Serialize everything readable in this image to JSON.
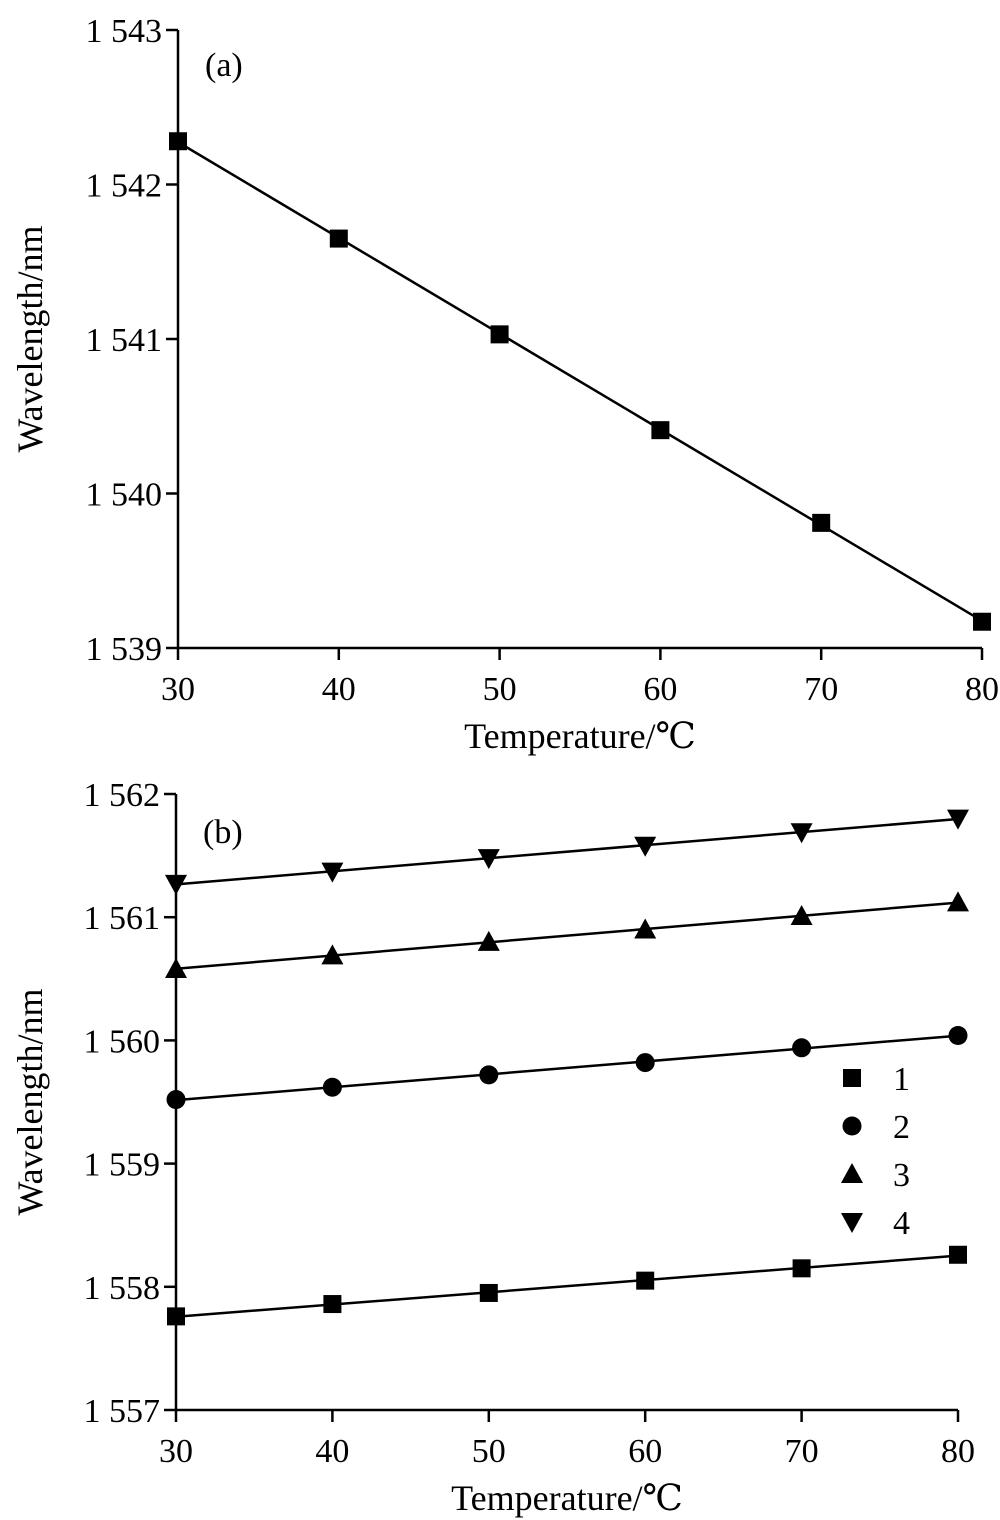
{
  "chart_data": [
    {
      "type": "line",
      "panel_label": "(a)",
      "xlabel": "Temperature/℃",
      "ylabel": "Wavelength/nm",
      "xlim": [
        30,
        80
      ],
      "ylim": [
        1539,
        1543
      ],
      "x_ticks": [
        30,
        40,
        50,
        60,
        70,
        80
      ],
      "x_tick_labels": [
        "30",
        "40",
        "50",
        "60",
        "70",
        "80"
      ],
      "y_ticks": [
        1539,
        1540,
        1541,
        1542,
        1543
      ],
      "y_tick_labels": [
        "1 539",
        "1 540",
        "1 541",
        "1 542",
        "1 543"
      ],
      "grid": false,
      "series": [
        {
          "name": "",
          "marker": "square",
          "x": [
            30,
            40,
            50,
            60,
            70,
            80
          ],
          "values": [
            1542.28,
            1541.65,
            1541.03,
            1540.41,
            1539.81,
            1539.17
          ]
        }
      ]
    },
    {
      "type": "line",
      "panel_label": "(b)",
      "xlabel": "Temperature/℃",
      "ylabel": "Wavelength/nm",
      "xlim": [
        30,
        80
      ],
      "ylim": [
        1557,
        1562
      ],
      "x_ticks": [
        30,
        40,
        50,
        60,
        70,
        80
      ],
      "x_tick_labels": [
        "30",
        "40",
        "50",
        "60",
        "70",
        "80"
      ],
      "y_ticks": [
        1557,
        1558,
        1559,
        1560,
        1561,
        1562
      ],
      "y_tick_labels": [
        "1 557",
        "1 558",
        "1 559",
        "1 560",
        "1 561",
        "1 562"
      ],
      "grid": false,
      "legend_position": "right",
      "series": [
        {
          "name": "1",
          "marker": "square",
          "x": [
            30,
            40,
            50,
            60,
            70,
            80
          ],
          "values": [
            1557.76,
            1557.86,
            1557.95,
            1558.05,
            1558.15,
            1558.26
          ]
        },
        {
          "name": "2",
          "marker": "circle",
          "x": [
            30,
            40,
            50,
            60,
            70,
            80
          ],
          "values": [
            1559.52,
            1559.62,
            1559.72,
            1559.82,
            1559.94,
            1560.04
          ]
        },
        {
          "name": "3",
          "marker": "triangle-up",
          "x": [
            30,
            40,
            50,
            60,
            70,
            80
          ],
          "values": [
            1560.58,
            1560.69,
            1560.8,
            1560.9,
            1561.01,
            1561.12
          ]
        },
        {
          "name": "4",
          "marker": "triangle-down",
          "x": [
            30,
            40,
            50,
            60,
            70,
            80
          ],
          "values": [
            1561.27,
            1561.37,
            1561.48,
            1561.58,
            1561.69,
            1561.8
          ]
        }
      ]
    }
  ]
}
